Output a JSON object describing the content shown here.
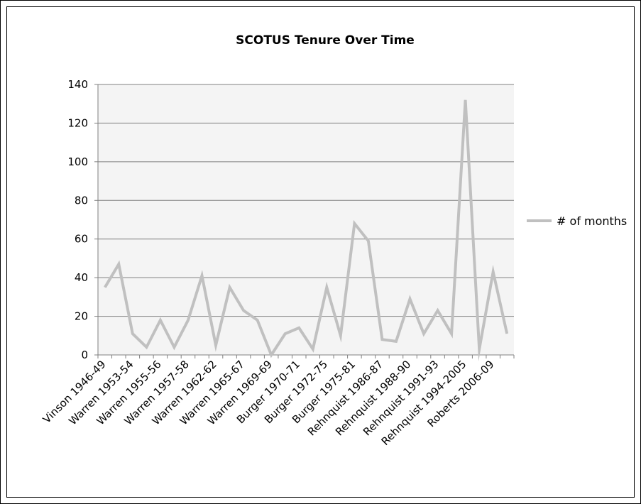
{
  "chart_data": {
    "type": "line",
    "title": "SCOTUS Tenure Over Time",
    "xlabel": "",
    "ylabel": "",
    "ylim": [
      0,
      140
    ],
    "yticks": [
      0,
      20,
      40,
      60,
      80,
      100,
      120,
      140
    ],
    "grid": true,
    "legend_position": "right",
    "categories": [
      "Vinson 1946-49",
      "",
      "Warren 1953-54",
      "",
      "Warren 1955-56",
      "",
      "Warren 1957-58",
      "",
      "Warren 1962-62",
      "",
      "Warren 1965-67",
      "",
      "Warren 1969-69",
      "",
      "Burger 1970-71",
      "",
      "Burger 1972-75",
      "",
      "Burger 1975-81",
      "",
      "Rehnquist 1986-87",
      "",
      "Rehnquist 1988-90",
      "",
      "Rehnquist 1991-93",
      "",
      "Rehnquist 1994-2005",
      "",
      "Roberts 2006-09",
      ""
    ],
    "series": [
      {
        "name": "# of months",
        "color": "#c0c0c0",
        "values": [
          35,
          47,
          11,
          4,
          18,
          4,
          18,
          41,
          5,
          35,
          23,
          18,
          0,
          11,
          14,
          3,
          35,
          10,
          68,
          59,
          8,
          7,
          29,
          11,
          23,
          11,
          132,
          3,
          43,
          11
        ]
      }
    ]
  },
  "colors": {
    "plot_background": "#f4f4f4",
    "gridline": "#808080",
    "axis": "#808080",
    "border": "#000000"
  }
}
